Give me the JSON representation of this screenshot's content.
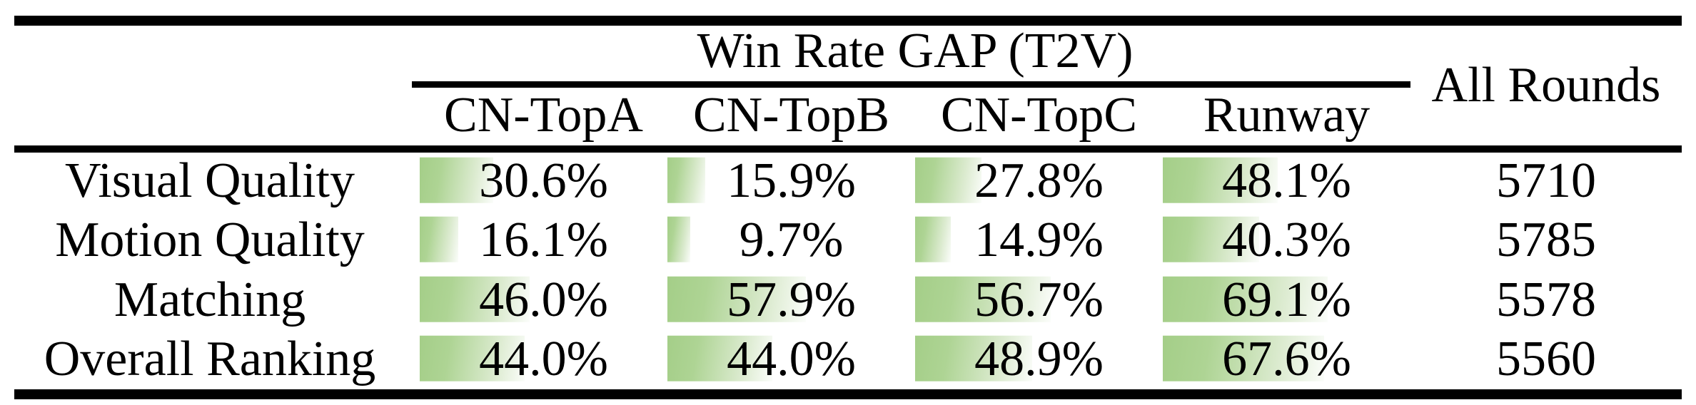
{
  "table": {
    "group_header": "Win Rate GAP (T2V)",
    "sub_headers": [
      "CN-TopA",
      "CN-TopB",
      "CN-TopC",
      "Runway"
    ],
    "all_rounds_header": "All Rounds",
    "rows": [
      {
        "label": "Visual Quality",
        "values": [
          "30.6%",
          "15.9%",
          "27.8%",
          "48.1%"
        ],
        "all_rounds": "5710"
      },
      {
        "label": "Motion Quality",
        "values": [
          "16.1%",
          "9.7%",
          "14.9%",
          "40.3%"
        ],
        "all_rounds": "5785"
      },
      {
        "label": "Matching",
        "values": [
          "46.0%",
          "57.9%",
          "56.7%",
          "69.1%"
        ],
        "all_rounds": "5578"
      },
      {
        "label": "Overall Ranking",
        "values": [
          "44.0%",
          "44.0%",
          "48.9%",
          "67.6%"
        ],
        "all_rounds": "5560"
      }
    ]
  },
  "colors": {
    "bar_green": "#a4ce88",
    "bar_fade": "#fbfdfa",
    "rule_black": "#000000",
    "background": "#ffffff",
    "text": "#000000"
  },
  "chart_data": {
    "type": "table",
    "title": "Win Rate GAP (T2V)",
    "columns": [
      "CN-TopA",
      "CN-TopB",
      "CN-TopC",
      "Runway",
      "All Rounds"
    ],
    "categories": [
      "Visual Quality",
      "Motion Quality",
      "Matching",
      "Overall Ranking"
    ],
    "series": [
      {
        "name": "CN-TopA",
        "values": [
          30.6,
          16.1,
          46.0,
          44.0
        ]
      },
      {
        "name": "CN-TopB",
        "values": [
          15.9,
          9.7,
          57.9,
          44.0
        ]
      },
      {
        "name": "CN-TopC",
        "values": [
          27.8,
          14.9,
          56.7,
          48.9
        ]
      },
      {
        "name": "Runway",
        "values": [
          48.1,
          40.3,
          69.1,
          67.6
        ]
      }
    ],
    "all_rounds": [
      5710,
      5785,
      5578,
      5560
    ],
    "value_unit": "percent",
    "bar_style": "horizontal green gradient data bars behind values, width proportional to percentage (100% = full column width)"
  }
}
